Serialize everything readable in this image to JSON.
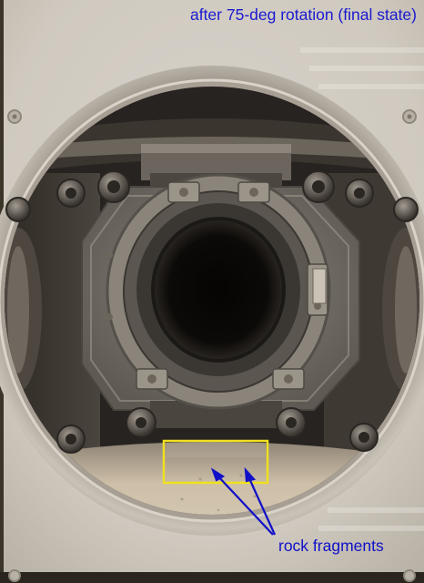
{
  "caption": "after 75-deg rotation (final state)",
  "annotation": {
    "label": "rock fragments",
    "label_color": "#1010c8",
    "arrow_color": "#1010c8",
    "highlight_color": "#f0e020"
  },
  "colors": {
    "caption_text": "#1a1ad0",
    "housing_metal": "#bdb5aa",
    "inner_plate": "#77716a",
    "bore": "#050403",
    "debris_floor": "#c9bca6"
  }
}
